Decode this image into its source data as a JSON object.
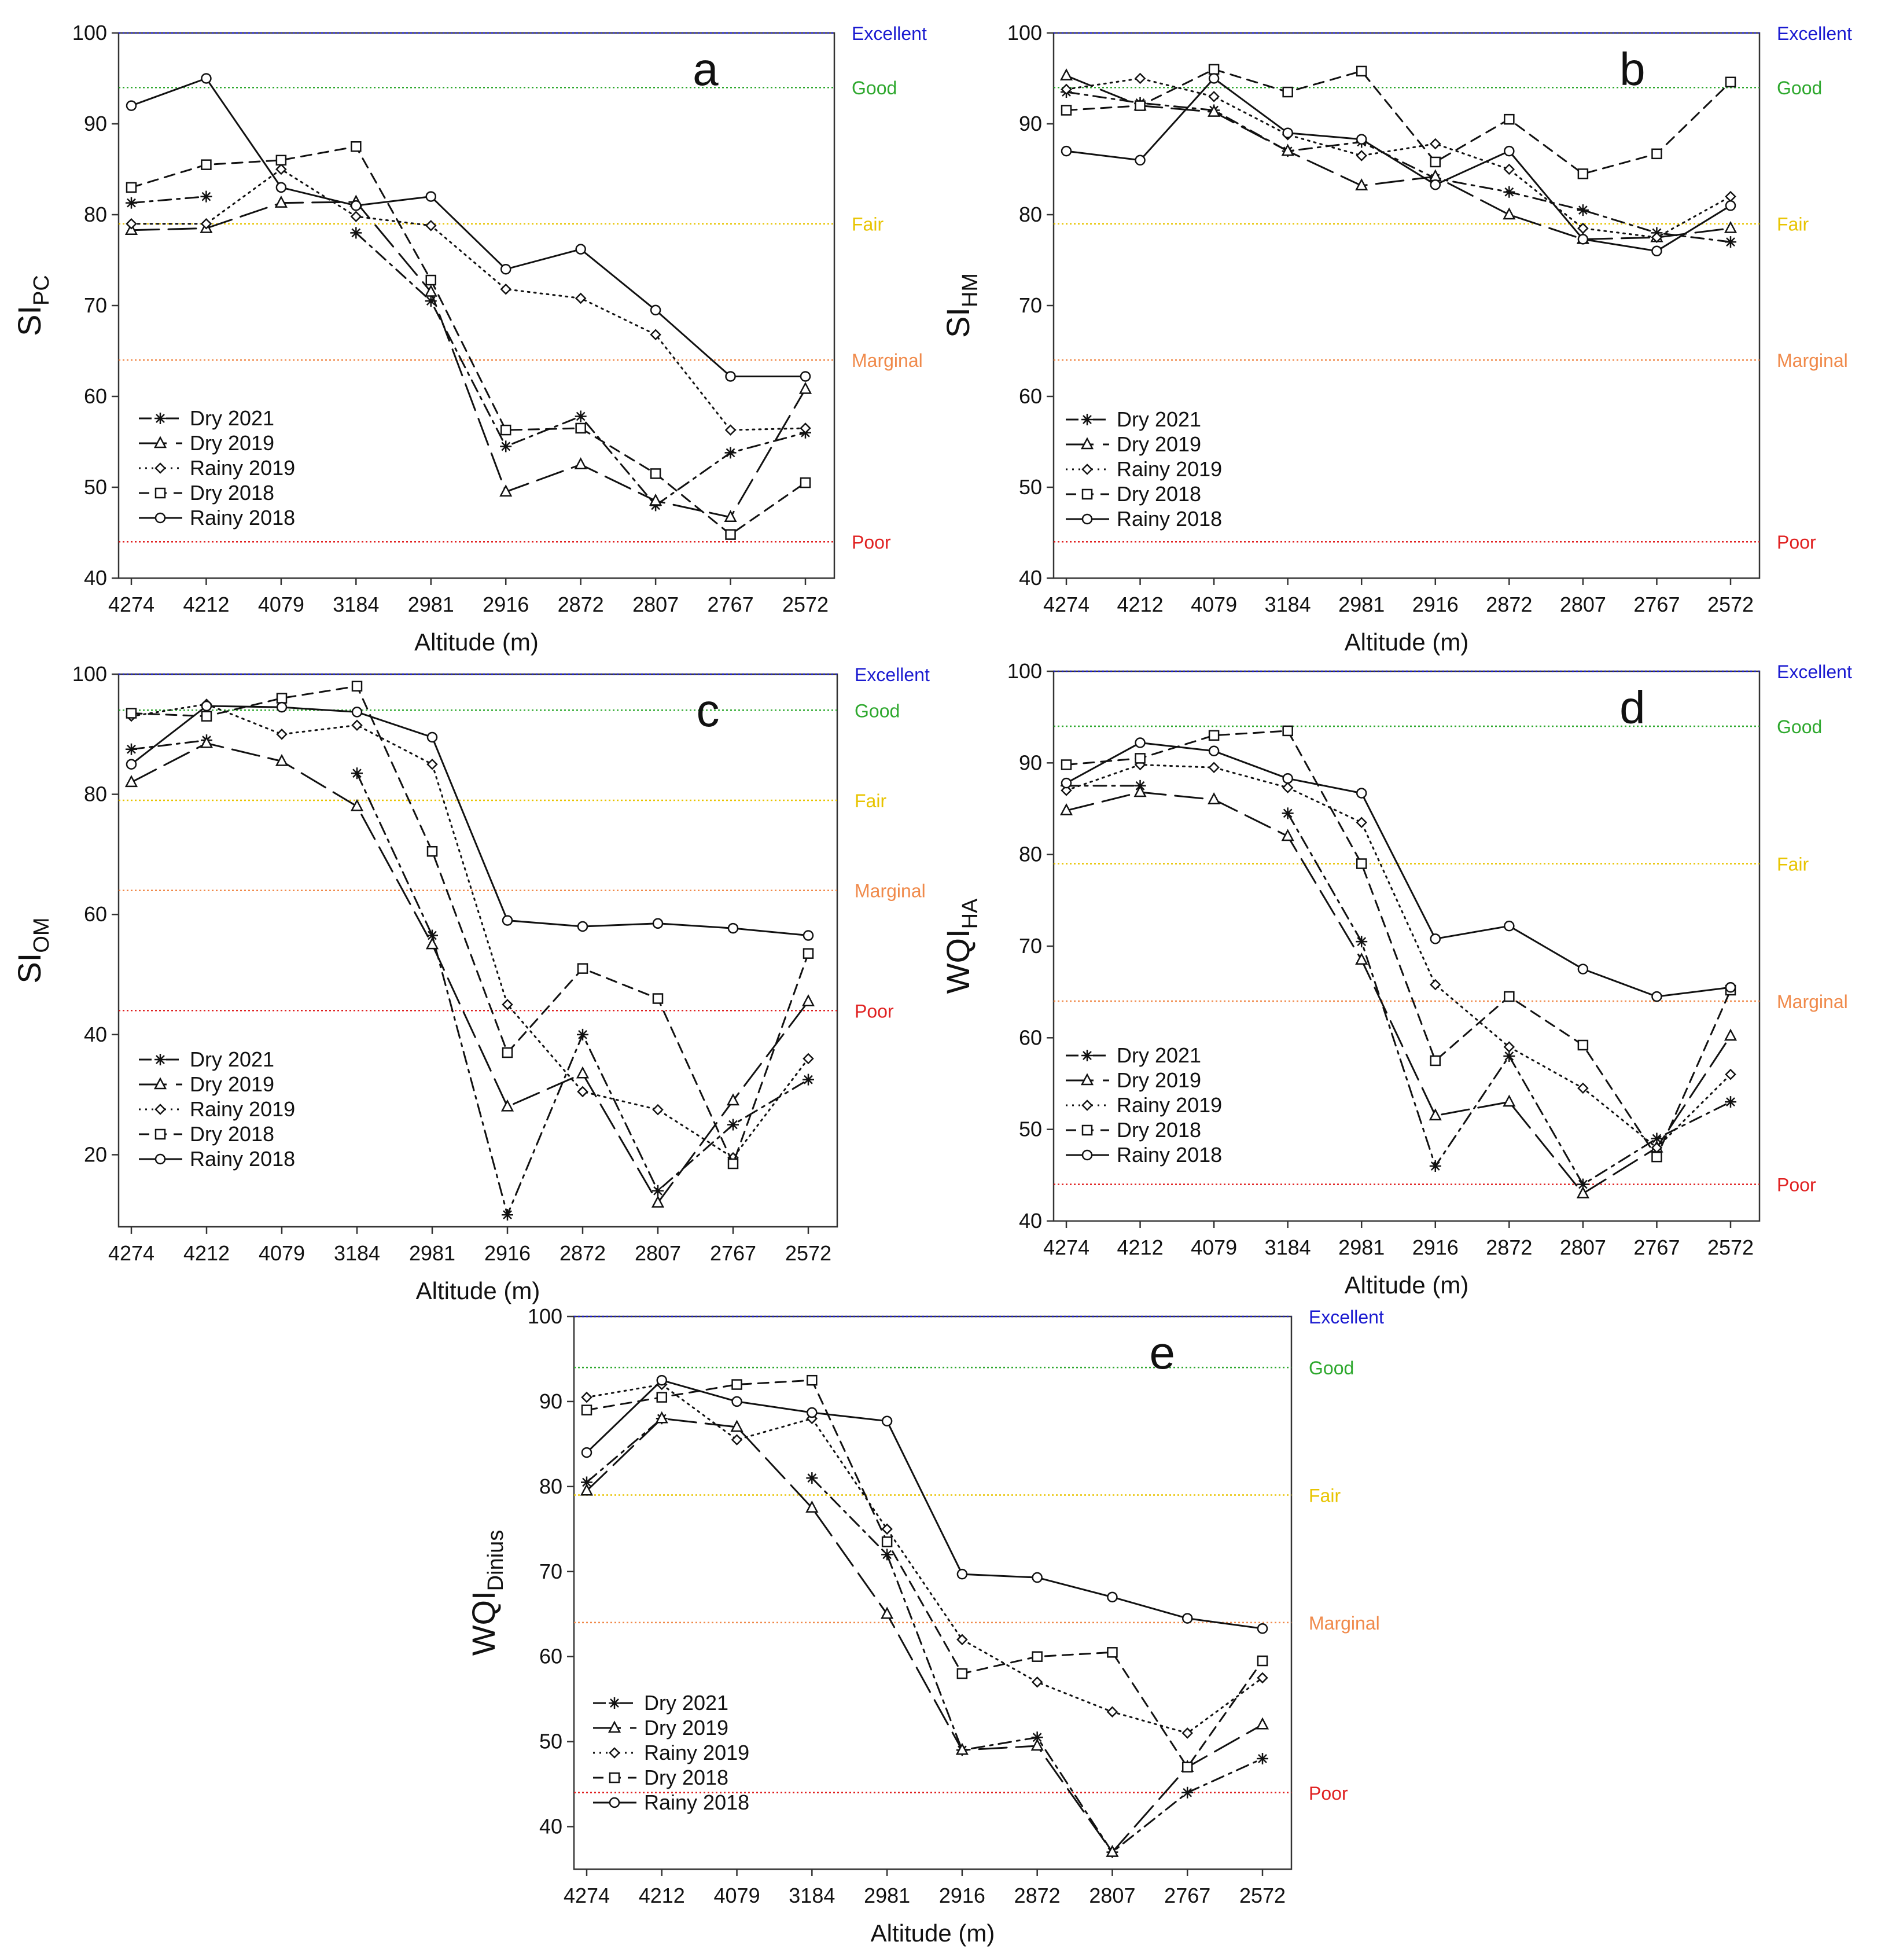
{
  "legend_labels": [
    "Dry 2021",
    "Dry 2019",
    "Rainy 2019",
    "Dry 2018",
    "Rainy 2018"
  ],
  "categories": [
    "4274",
    "4212",
    "4079",
    "3184",
    "2981",
    "2916",
    "2872",
    "2807",
    "2767",
    "2572"
  ],
  "xlabel": "Altitude (m)",
  "colors": {
    "Excellent": "#1a1ad0",
    "Good": "#2ea82e",
    "Fair": "#e8c400",
    "Marginal": "#f08a4b",
    "Poor": "#e02020",
    "series": "#111111"
  },
  "chart_data": [
    {
      "type": "line",
      "panel_letter": "a",
      "ylabel_main": "SI",
      "ylabel_sub": "PC",
      "xlabel": "Altitude (m)",
      "categories": [
        "4274",
        "4212",
        "4079",
        "3184",
        "2981",
        "2916",
        "2872",
        "2807",
        "2767",
        "2572"
      ],
      "ylim": [
        40,
        100
      ],
      "yticks": [
        40,
        50,
        60,
        70,
        80,
        90,
        100
      ],
      "thresholds": [
        {
          "label": "Excellent",
          "value": 100
        },
        {
          "label": "Good",
          "value": 94
        },
        {
          "label": "Fair",
          "value": 79
        },
        {
          "label": "Marginal",
          "value": 64
        },
        {
          "label": "Poor",
          "value": 44
        }
      ],
      "series": [
        {
          "name": "Dry 2021",
          "values": [
            81.3,
            82.0,
            null,
            78.0,
            70.5,
            54.5,
            57.8,
            48.0,
            53.8,
            56.0
          ]
        },
        {
          "name": "Dry 2019",
          "values": [
            78.3,
            78.5,
            81.3,
            81.4,
            71.5,
            49.5,
            52.5,
            48.5,
            46.7,
            60.8
          ]
        },
        {
          "name": "Rainy 2019",
          "values": [
            79.0,
            79.0,
            85.0,
            79.8,
            78.8,
            71.8,
            70.8,
            66.8,
            56.3,
            56.5
          ]
        },
        {
          "name": "Dry 2018",
          "values": [
            83.0,
            85.5,
            86.0,
            87.5,
            72.8,
            56.3,
            56.5,
            51.5,
            44.8,
            50.5
          ]
        },
        {
          "name": "Rainy 2018",
          "values": [
            92.0,
            95.0,
            83.0,
            81.0,
            82.0,
            74.0,
            76.2,
            69.5,
            62.2,
            62.2
          ]
        }
      ]
    },
    {
      "type": "line",
      "panel_letter": "b",
      "ylabel_main": "SI",
      "ylabel_sub": "HM",
      "xlabel": "Altitude (m)",
      "categories": [
        "4274",
        "4212",
        "4079",
        "3184",
        "2981",
        "2916",
        "2872",
        "2807",
        "2767",
        "2572"
      ],
      "ylim": [
        40,
        100
      ],
      "yticks": [
        40,
        50,
        60,
        70,
        80,
        90,
        100
      ],
      "thresholds": [
        {
          "label": "Excellent",
          "value": 100
        },
        {
          "label": "Good",
          "value": 94
        },
        {
          "label": "Fair",
          "value": 79
        },
        {
          "label": "Marginal",
          "value": 64
        },
        {
          "label": "Poor",
          "value": 44
        }
      ],
      "series": [
        {
          "name": "Dry 2021",
          "values": [
            93.5,
            92.3,
            91.5,
            87.0,
            88.0,
            84.0,
            82.5,
            80.5,
            78.0,
            77.0
          ]
        },
        {
          "name": "Dry 2019",
          "values": [
            95.3,
            92.0,
            91.3,
            87.0,
            83.2,
            84.2,
            80.0,
            77.3,
            77.5,
            78.5
          ]
        },
        {
          "name": "Rainy 2019",
          "values": [
            93.8,
            95.0,
            93.0,
            88.8,
            86.5,
            87.8,
            85.0,
            78.5,
            77.5,
            82.0
          ]
        },
        {
          "name": "Dry 2018",
          "values": [
            91.5,
            92.0,
            96.0,
            93.5,
            95.8,
            85.8,
            90.5,
            84.5,
            86.7,
            94.6
          ]
        },
        {
          "name": "Rainy 2018",
          "values": [
            87.0,
            86.0,
            95.0,
            89.0,
            88.3,
            83.3,
            87.0,
            77.3,
            76.0,
            81.0
          ]
        }
      ]
    },
    {
      "type": "line",
      "panel_letter": "c",
      "ylabel_main": "SI",
      "ylabel_sub": "OM",
      "xlabel": "Altitude (m)",
      "categories": [
        "4274",
        "4212",
        "4079",
        "3184",
        "2981",
        "2916",
        "2872",
        "2807",
        "2767",
        "2572"
      ],
      "ylim": [
        8,
        100
      ],
      "yticks": [
        20,
        40,
        60,
        80,
        100
      ],
      "thresholds": [
        {
          "label": "Excellent",
          "value": 100
        },
        {
          "label": "Good",
          "value": 94
        },
        {
          "label": "Fair",
          "value": 79
        },
        {
          "label": "Marginal",
          "value": 64
        },
        {
          "label": "Poor",
          "value": 44
        }
      ],
      "series": [
        {
          "name": "Dry 2021",
          "values": [
            87.5,
            89.0,
            null,
            83.5,
            56.5,
            10.0,
            40.0,
            14.0,
            25.0,
            32.5
          ]
        },
        {
          "name": "Dry 2019",
          "values": [
            82.0,
            88.5,
            85.5,
            78.0,
            55.0,
            28.0,
            33.5,
            12.0,
            29.0,
            45.5
          ]
        },
        {
          "name": "Rainy 2019",
          "values": [
            93.0,
            95.0,
            90.0,
            91.5,
            85.0,
            45.0,
            30.5,
            27.5,
            19.5,
            36.0
          ]
        },
        {
          "name": "Dry 2018",
          "values": [
            93.5,
            93.0,
            96.0,
            98.0,
            70.5,
            37.0,
            51.0,
            46.0,
            18.5,
            53.5
          ]
        },
        {
          "name": "Rainy 2018",
          "values": [
            85.0,
            94.7,
            94.5,
            93.7,
            89.5,
            59.0,
            58.0,
            58.5,
            57.7,
            56.5
          ]
        }
      ]
    },
    {
      "type": "line",
      "panel_letter": "d",
      "ylabel_main": "WQI",
      "ylabel_sub": "HA",
      "xlabel": "Altitude (m)",
      "categories": [
        "4274",
        "4212",
        "4079",
        "3184",
        "2981",
        "2916",
        "2872",
        "2807",
        "2767",
        "2572"
      ],
      "ylim": [
        40,
        100
      ],
      "yticks": [
        40,
        50,
        60,
        70,
        80,
        90,
        100
      ],
      "thresholds": [
        {
          "label": "Excellent",
          "value": 100
        },
        {
          "label": "Good",
          "value": 94
        },
        {
          "label": "Fair",
          "value": 79
        },
        {
          "label": "Marginal",
          "value": 64
        },
        {
          "label": "Poor",
          "value": 44
        }
      ],
      "series": [
        {
          "name": "Dry 2021",
          "values": [
            87.5,
            87.5,
            null,
            84.5,
            70.5,
            46.0,
            58.0,
            44.0,
            49.0,
            53.0
          ]
        },
        {
          "name": "Dry 2019",
          "values": [
            84.8,
            86.8,
            86.0,
            82.0,
            68.5,
            51.5,
            53.0,
            43.0,
            48.0,
            60.2
          ]
        },
        {
          "name": "Rainy 2019",
          "values": [
            87.0,
            89.8,
            89.5,
            87.3,
            83.5,
            65.8,
            59.0,
            54.5,
            48.0,
            56.0
          ]
        },
        {
          "name": "Dry 2018",
          "values": [
            89.8,
            90.5,
            93.0,
            93.5,
            79.0,
            57.5,
            64.5,
            59.2,
            47.0,
            65.2
          ]
        },
        {
          "name": "Rainy 2018",
          "values": [
            87.8,
            92.2,
            91.3,
            88.3,
            86.7,
            70.8,
            72.2,
            67.5,
            64.5,
            65.5
          ]
        }
      ]
    },
    {
      "type": "line",
      "panel_letter": "e",
      "ylabel_main": "WQI",
      "ylabel_sub": "Dinius",
      "xlabel": "Altitude (m)",
      "categories": [
        "4274",
        "4212",
        "4079",
        "3184",
        "2981",
        "2916",
        "2872",
        "2807",
        "2767",
        "2572"
      ],
      "ylim": [
        35,
        100
      ],
      "yticks": [
        40,
        50,
        60,
        70,
        80,
        90,
        100
      ],
      "thresholds": [
        {
          "label": "Excellent",
          "value": 100
        },
        {
          "label": "Good",
          "value": 94
        },
        {
          "label": "Fair",
          "value": 79
        },
        {
          "label": "Marginal",
          "value": 64
        },
        {
          "label": "Poor",
          "value": 44
        }
      ],
      "series": [
        {
          "name": "Dry 2021",
          "values": [
            80.5,
            88.0,
            null,
            81.0,
            72.0,
            49.0,
            50.5,
            37.0,
            44.0,
            48.0
          ]
        },
        {
          "name": "Dry 2019",
          "values": [
            79.5,
            88.0,
            87.0,
            77.5,
            65.0,
            49.0,
            49.5,
            37.0,
            47.0,
            52.0
          ]
        },
        {
          "name": "Rainy 2019",
          "values": [
            90.5,
            92.0,
            85.5,
            88.0,
            75.0,
            62.0,
            57.0,
            53.5,
            51.0,
            57.5
          ]
        },
        {
          "name": "Dry 2018",
          "values": [
            89.0,
            90.5,
            92.0,
            92.5,
            73.5,
            58.0,
            60.0,
            60.5,
            47.0,
            59.5
          ]
        },
        {
          "name": "Rainy 2018",
          "values": [
            84.0,
            92.5,
            90.0,
            88.7,
            87.7,
            69.7,
            69.3,
            67.0,
            64.5,
            63.3
          ]
        }
      ]
    }
  ]
}
